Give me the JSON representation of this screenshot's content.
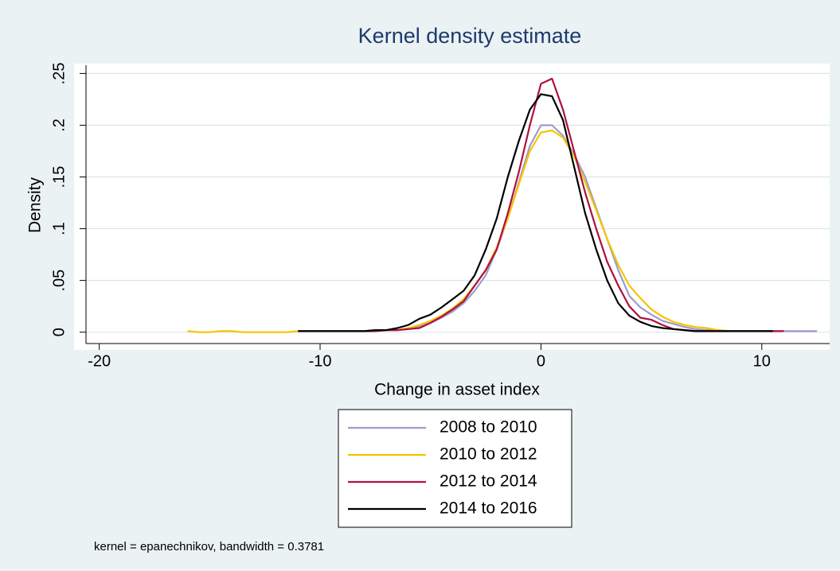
{
  "chart_data": {
    "type": "line",
    "title": "Kernel density estimate",
    "x_label": "Change in asset index",
    "y_label": "Density",
    "note": "kernel = epanechnikov, bandwidth = 0.3781",
    "legend": "bottom",
    "grid": true,
    "xlim": [
      -20.6,
      13.0
    ],
    "ylim": [
      -0.011,
      0.258
    ],
    "xticks": [
      -20,
      -10,
      0,
      10
    ],
    "yticks": [
      0,
      {
        "value": 0.05,
        "label": ".05"
      },
      {
        "value": 0.1,
        "label": ".1"
      },
      {
        "value": 0.15,
        "label": ".15"
      },
      {
        "value": 0.2,
        "label": ".2"
      },
      {
        "value": 0.25,
        "label": ".25"
      }
    ],
    "x": [
      -16.5,
      -16,
      -15.5,
      -15,
      -14.5,
      -14,
      -13.5,
      -13,
      -12.5,
      -12,
      -11.5,
      -11,
      -10.5,
      -10,
      -9.5,
      -9,
      -8.5,
      -8,
      -7.5,
      -7,
      -6.5,
      -6,
      -5.5,
      -5,
      -4.5,
      -4,
      -3.5,
      -3,
      -2.5,
      -2,
      -1.5,
      -1,
      -0.5,
      0,
      0.5,
      1,
      1.5,
      2,
      2.5,
      3,
      3.5,
      4,
      4.5,
      5,
      5.5,
      6,
      6.5,
      7,
      7.5,
      8,
      8.5,
      9,
      9.5,
      10,
      10.5,
      11,
      11.5,
      12,
      12.5
    ],
    "series": [
      {
        "name": "2008 to 2010",
        "color": "#9c9ccf",
        "values": [
          null,
          null,
          null,
          null,
          null,
          null,
          null,
          null,
          null,
          null,
          null,
          0.001,
          0.001,
          0.001,
          0.001,
          0.001,
          0.001,
          0.001,
          0.002,
          0.002,
          0.002,
          0.003,
          0.006,
          0.009,
          0.014,
          0.02,
          0.028,
          0.04,
          0.055,
          0.08,
          0.11,
          0.145,
          0.18,
          0.2,
          0.2,
          0.19,
          0.172,
          0.15,
          0.12,
          0.09,
          0.06,
          0.035,
          0.024,
          0.017,
          0.011,
          0.008,
          0.005,
          0.003,
          0.002,
          0.002,
          0.001,
          0.001,
          0.001,
          0.001,
          0.001,
          0.001,
          0.001,
          0.001,
          0.001
        ]
      },
      {
        "name": "2010 to 2012",
        "color": "#f5c400",
        "values": [
          null,
          0.001,
          0,
          0,
          0.001,
          0.001,
          0,
          0,
          0,
          0,
          0,
          0.001,
          0.001,
          0.001,
          0.001,
          0.001,
          0.001,
          0.001,
          0.001,
          0.002,
          0.002,
          0.004,
          0.007,
          0.011,
          0.016,
          0.023,
          0.032,
          0.045,
          0.06,
          0.082,
          0.11,
          0.143,
          0.175,
          0.193,
          0.195,
          0.188,
          0.17,
          0.145,
          0.118,
          0.09,
          0.065,
          0.045,
          0.033,
          0.022,
          0.015,
          0.01,
          0.007,
          0.005,
          0.004,
          0.002,
          0.001,
          0.001,
          0.001,
          0.001,
          0.001,
          0.001,
          null,
          null,
          null
        ]
      },
      {
        "name": "2012 to 2014",
        "color": "#b0103c",
        "values": [
          null,
          null,
          null,
          null,
          null,
          null,
          null,
          null,
          null,
          null,
          null,
          0.001,
          0.001,
          0.001,
          0.001,
          0.001,
          0.001,
          0.001,
          0.001,
          0.002,
          0.002,
          0.003,
          0.004,
          0.009,
          0.015,
          0.022,
          0.03,
          0.045,
          0.06,
          0.08,
          0.115,
          0.155,
          0.2,
          0.24,
          0.245,
          0.215,
          0.175,
          0.135,
          0.1,
          0.068,
          0.045,
          0.025,
          0.014,
          0.012,
          0.007,
          0.003,
          0.002,
          0.001,
          0.001,
          0.001,
          0.001,
          0.001,
          0.001,
          0.001,
          0.001,
          0.001,
          null,
          null,
          null
        ]
      },
      {
        "name": "2014 to 2016",
        "color": "#000000",
        "values": [
          null,
          null,
          null,
          null,
          null,
          null,
          null,
          null,
          null,
          null,
          null,
          0.001,
          0.001,
          0.001,
          0.001,
          0.001,
          0.001,
          0.001,
          0.002,
          0.002,
          0.004,
          0.007,
          0.013,
          0.017,
          0.024,
          0.032,
          0.04,
          0.055,
          0.08,
          0.11,
          0.15,
          0.185,
          0.215,
          0.23,
          0.228,
          0.205,
          0.16,
          0.115,
          0.08,
          0.05,
          0.028,
          0.016,
          0.01,
          0.006,
          0.004,
          0.003,
          0.002,
          0.001,
          0.001,
          0.001,
          0.001,
          0.001,
          0.001,
          0.001,
          0.001,
          null,
          null,
          null,
          null
        ]
      }
    ]
  }
}
